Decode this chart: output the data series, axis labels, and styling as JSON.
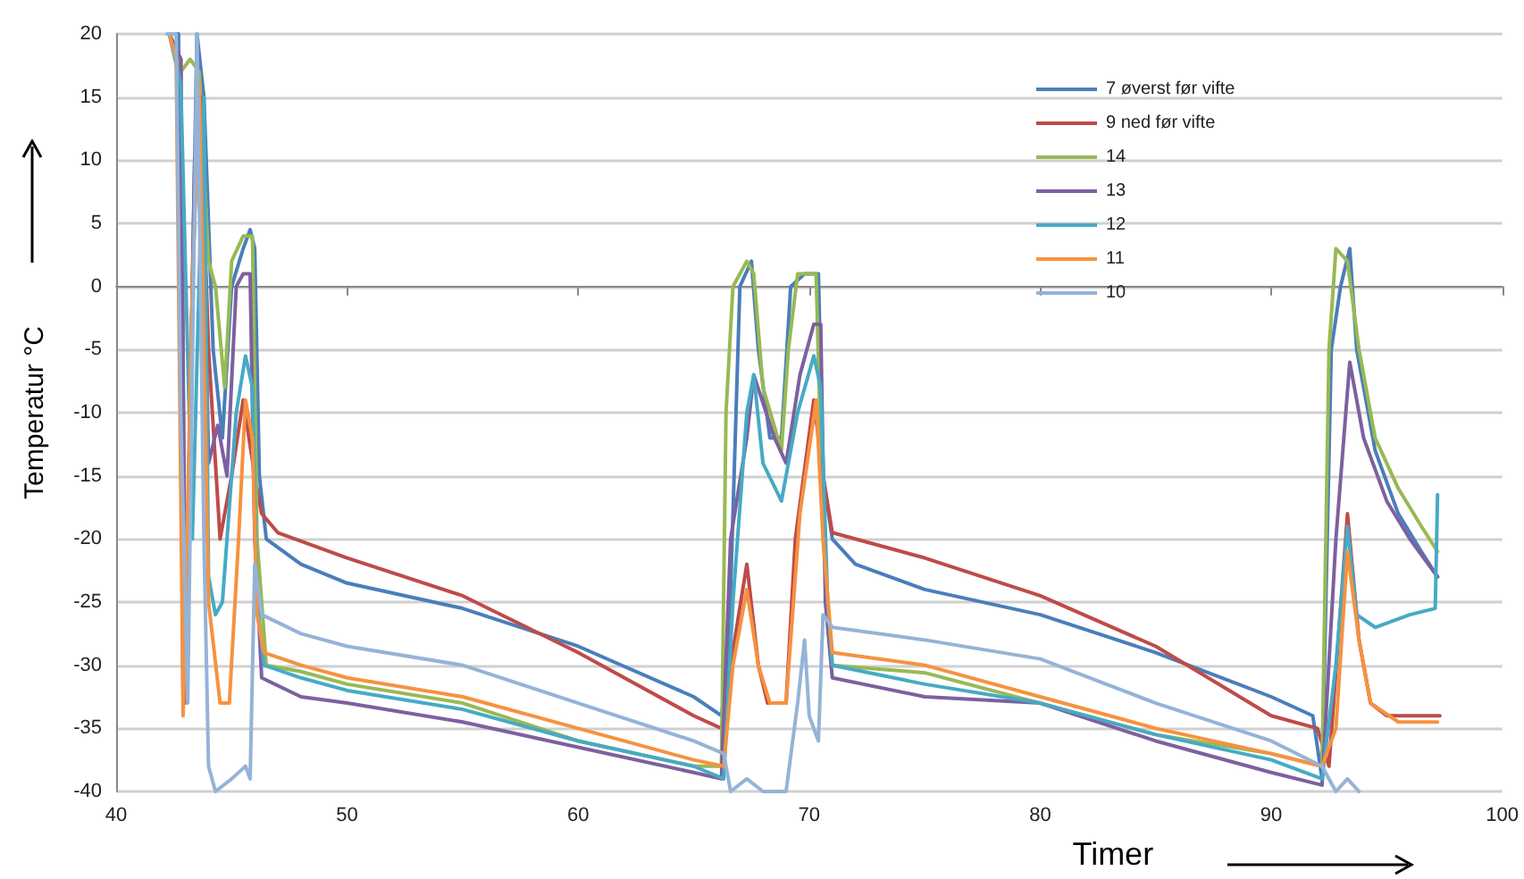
{
  "chart_data": {
    "type": "line",
    "xlabel": "Timer",
    "ylabel": "Temperatur °C",
    "xlim": [
      40,
      100
    ],
    "xticks": [
      40,
      50,
      60,
      70,
      80,
      90,
      100
    ],
    "ylim": [
      -40,
      20
    ],
    "yticks": [
      -40,
      -35,
      -30,
      -25,
      -20,
      -15,
      -10,
      -5,
      0,
      5,
      10,
      15,
      20
    ],
    "grid": "y",
    "legend": "top right",
    "marker": "none",
    "line_style": "solid",
    "series": [
      {
        "name": "7 øverst før vifte",
        "color": "#4a7ebb",
        "x": [
          42.3,
          42.7,
          42.9,
          43.1,
          43.5,
          43.8,
          44.2,
          44.6,
          45,
          45.5,
          45.8,
          46,
          46.2,
          46.5,
          48,
          50,
          55,
          60,
          65,
          66.2,
          66.5,
          67,
          67.5,
          67.8,
          68.3,
          68.8,
          69.2,
          69.8,
          70.4,
          70.6,
          71,
          72,
          75,
          80,
          85,
          90,
          91.8,
          92.2,
          92.6,
          93,
          93.4,
          93.7,
          94.5,
          95.5,
          96.5,
          97.2
        ],
        "values": [
          20,
          20,
          -33,
          -20,
          20,
          15,
          -5,
          -12,
          0,
          3,
          4.5,
          3,
          -15,
          -20,
          -22,
          -23.5,
          -25.5,
          -28.5,
          -32.5,
          -34,
          -30,
          0,
          2,
          -5,
          -12,
          -12,
          0,
          1,
          1,
          -15,
          -20,
          -22,
          -24,
          -26,
          -29,
          -32.5,
          -34,
          -39,
          -5,
          0,
          3,
          -5,
          -13,
          -18,
          -21,
          -23
        ]
      },
      {
        "name": "9 ned før vifte",
        "color": "#be4b48",
        "x": [
          42.3,
          42.8,
          43,
          43.3,
          43.6,
          44,
          44.5,
          45,
          45.5,
          46,
          46.3,
          47,
          50,
          55,
          60,
          65,
          66.2,
          66.6,
          67.3,
          67.8,
          68.2,
          69,
          69.4,
          70.2,
          70.6,
          71,
          75,
          80,
          85,
          90,
          92,
          92.5,
          93.3,
          93.8,
          94.3,
          95,
          97.3
        ],
        "values": [
          20,
          18,
          -33,
          0,
          17,
          -5,
          -20,
          -15,
          -9,
          -15,
          -18,
          -19.5,
          -21.5,
          -24.5,
          -29,
          -34,
          -35,
          -30,
          -22,
          -30,
          -33,
          -33,
          -20,
          -9,
          -15,
          -19.5,
          -21.5,
          -24.5,
          -28.5,
          -34,
          -35,
          -38,
          -18,
          -28,
          -33,
          -34,
          -34
        ]
      },
      {
        "name": "14",
        "color": "#98b954",
        "x": [
          42.3,
          42.8,
          43.2,
          43.6,
          44,
          44.3,
          44.7,
          45,
          45.5,
          45.9,
          46.1,
          46.5,
          48,
          50,
          55,
          60,
          65,
          66.2,
          66.4,
          66.7,
          67.3,
          67.6,
          68,
          68.8,
          69.1,
          69.5,
          70.3,
          70.6,
          71,
          75,
          80,
          85,
          90,
          92.2,
          92.5,
          92.8,
          93.3,
          93.8,
          94.5,
          95.5,
          96.5,
          97.2
        ],
        "values": [
          20,
          17,
          18,
          17,
          2,
          0,
          -8,
          2,
          4,
          4,
          -20,
          -30,
          -30.5,
          -31.5,
          -33,
          -36,
          -38,
          -38,
          -10,
          0,
          2,
          1,
          -8,
          -13,
          -5,
          1,
          1,
          -20,
          -30,
          -30.6,
          -33,
          -35.5,
          -37,
          -38,
          -5,
          3,
          2,
          -5,
          -12,
          -16,
          -19,
          -21
        ]
      },
      {
        "name": "13",
        "color": "#7d60a0",
        "x": [
          42.3,
          42.8,
          43,
          43.4,
          43.7,
          44,
          44.4,
          44.8,
          45.2,
          45.5,
          45.8,
          46,
          46.3,
          48,
          50,
          55,
          60,
          65,
          66.2,
          66.6,
          67.3,
          67.6,
          68.5,
          69,
          69.6,
          70.2,
          70.5,
          70.7,
          71,
          75,
          80,
          85,
          90,
          92.2,
          92.8,
          93.4,
          94,
          95,
          96,
          97.2
        ],
        "values": [
          20,
          18,
          -30,
          10,
          15,
          -14,
          -11,
          -15,
          0,
          1,
          1,
          -20,
          -31,
          -32.5,
          -33,
          -34.5,
          -36.5,
          -38.5,
          -39,
          -20,
          -12,
          -7,
          -12,
          -14,
          -7,
          -3,
          -3,
          -25,
          -31,
          -32.5,
          -33,
          -36,
          -38.5,
          -39.5,
          -20,
          -6,
          -12,
          -17,
          -20,
          -23
        ]
      },
      {
        "name": "12",
        "color": "#46aac5",
        "x": [
          42.3,
          42.8,
          43.3,
          43.8,
          44,
          44.3,
          44.6,
          45.2,
          45.6,
          45.9,
          46.1,
          46.4,
          48,
          50,
          55,
          60,
          65,
          66.3,
          66.7,
          67.3,
          67.6,
          68,
          68.8,
          69.5,
          70.2,
          70.5,
          70.8,
          71,
          75,
          80,
          85,
          90,
          92.2,
          92.8,
          93.3,
          93.7,
          94.5,
          96,
          97.1,
          97.2
        ],
        "values": [
          20,
          16,
          -20,
          15,
          -23,
          -26,
          -25,
          -10,
          -5.5,
          -8,
          -25,
          -30,
          -31,
          -32,
          -33.5,
          -36,
          -38,
          -39,
          -25,
          -10,
          -7,
          -14,
          -17,
          -10,
          -5.5,
          -8,
          -25,
          -30,
          -31.5,
          -33,
          -35.5,
          -37.5,
          -39,
          -30,
          -19,
          -26,
          -27,
          -26,
          -25.5,
          -16.5
        ]
      },
      {
        "name": "11",
        "color": "#f69240",
        "x": [
          42.3,
          42.6,
          42.9,
          43.3,
          43.6,
          44,
          44.5,
          44.9,
          45.3,
          45.6,
          45.9,
          46.1,
          46.4,
          48,
          50,
          55,
          60,
          65,
          66.3,
          66.7,
          67.3,
          67.8,
          68.3,
          69,
          69.6,
          70.3,
          70.6,
          71,
          75,
          80,
          85,
          90,
          92.2,
          92.8,
          93.3,
          93.8,
          94.3,
          95.5,
          97.2
        ],
        "values": [
          20,
          18,
          -34,
          0,
          16,
          -25,
          -33,
          -33,
          -20,
          -9,
          -12,
          -26,
          -29,
          -30,
          -31,
          -32.5,
          -35,
          -37.5,
          -38,
          -30,
          -24,
          -30,
          -33,
          -33,
          -18,
          -9,
          -20,
          -29,
          -30,
          -32.5,
          -35,
          -37,
          -38,
          -35,
          -21,
          -28,
          -33,
          -34.5,
          -34.5
        ]
      },
      {
        "name": "10",
        "color": "#95b3d7",
        "x": [
          42.2,
          42.6,
          42.8,
          43.1,
          43.5,
          43.8,
          44,
          44.3,
          45,
          45.6,
          45.8,
          46,
          46.3,
          48,
          50,
          55,
          60,
          65,
          66.3,
          66.6,
          67.3,
          68,
          69,
          69.5,
          69.8,
          70,
          70.4,
          70.6,
          71,
          75,
          80,
          85,
          90,
          92.2,
          92.8,
          93.3,
          93.8
        ],
        "values": [
          20,
          20,
          -10,
          -33,
          20,
          -20,
          -38,
          -40,
          -39,
          -38,
          -39,
          -22,
          -26,
          -27.5,
          -28.5,
          -30,
          -33,
          -36,
          -37,
          -40,
          -39,
          -40,
          -40,
          -33,
          -28,
          -34,
          -36,
          -26,
          -27,
          -28,
          -29.5,
          -33,
          -36,
          -38,
          -40,
          -39,
          -40
        ]
      }
    ]
  }
}
